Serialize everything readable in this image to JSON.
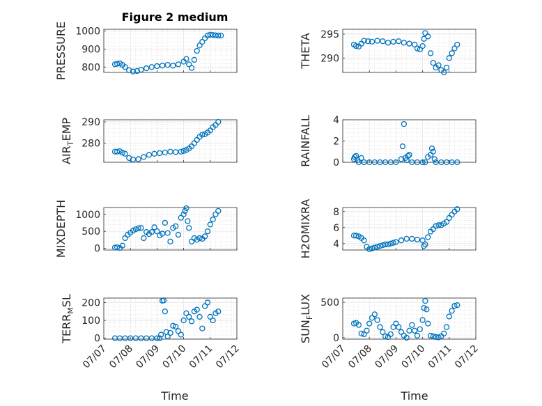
{
  "figure": {
    "title": "Figure 2 medium",
    "xlabel": "Time"
  },
  "marker_color": "#0072BD",
  "chart_data": [
    {
      "type": "scatter",
      "ylabel": "PRESSURE",
      "yticks": [
        800,
        900,
        1000
      ],
      "ylim": [
        770,
        1010
      ],
      "xlim": [
        0,
        5
      ],
      "xticks": [
        "07/07",
        "07/08",
        "07/09",
        "07/10",
        "07/11",
        "07/12"
      ],
      "series": [
        {
          "name": "",
          "x": [
            0.42,
            0.5,
            0.6,
            0.7,
            0.8,
            0.95,
            1.1,
            1.25,
            1.4,
            1.6,
            1.8,
            2.0,
            2.2,
            2.4,
            2.6,
            2.8,
            3.0,
            3.1,
            3.2,
            3.3,
            3.4,
            3.5,
            3.6,
            3.7,
            3.8,
            3.9,
            4.0,
            4.1,
            4.2,
            4.3,
            4.4
          ],
          "y": [
            815,
            818,
            820,
            812,
            800,
            782,
            775,
            778,
            785,
            793,
            800,
            805,
            808,
            812,
            808,
            815,
            830,
            845,
            815,
            795,
            840,
            890,
            920,
            940,
            960,
            975,
            980,
            978,
            976,
            975,
            975
          ]
        }
      ]
    },
    {
      "type": "scatter",
      "ylabel": "THETA",
      "yticks": [
        290,
        295
      ],
      "ylim": [
        287,
        296
      ],
      "xlim": [
        0,
        5
      ],
      "xticks": [
        "07/07",
        "07/08",
        "07/09",
        "07/10",
        "07/11",
        "07/12"
      ],
      "series": [
        {
          "name": "",
          "x": [
            0.42,
            0.5,
            0.6,
            0.7,
            0.8,
            0.95,
            1.1,
            1.3,
            1.5,
            1.7,
            1.9,
            2.1,
            2.3,
            2.5,
            2.7,
            2.8,
            2.9,
            3.0,
            3.05,
            3.1,
            3.2,
            3.3,
            3.4,
            3.5,
            3.6,
            3.7,
            3.8,
            3.9,
            4.0,
            4.1,
            4.2,
            4.3
          ],
          "y": [
            292.8,
            292.5,
            292.4,
            293,
            293.6,
            293.5,
            293.4,
            293.6,
            293.5,
            293.2,
            293.4,
            293.5,
            293.2,
            293,
            292.8,
            292,
            291.8,
            292.5,
            294,
            295.2,
            294.5,
            291,
            289,
            288,
            288.5,
            287.5,
            287,
            288,
            290,
            291,
            292,
            292.8
          ]
        }
      ]
    },
    {
      "type": "scatter",
      "ylabel": "AIR_TEMP",
      "yticks": [
        280,
        290
      ],
      "ylim": [
        271,
        291
      ],
      "xlim": [
        0,
        5
      ],
      "xticks": [
        "07/07",
        "07/08",
        "07/09",
        "07/10",
        "07/11",
        "07/12"
      ],
      "series": [
        {
          "name": "",
          "x": [
            0.42,
            0.5,
            0.6,
            0.7,
            0.8,
            0.95,
            1.1,
            1.3,
            1.5,
            1.7,
            1.9,
            2.1,
            2.3,
            2.5,
            2.7,
            2.9,
            3.0,
            3.1,
            3.2,
            3.3,
            3.4,
            3.5,
            3.6,
            3.7,
            3.8,
            3.9,
            4.0,
            4.1,
            4.2,
            4.3
          ],
          "y": [
            276,
            276,
            276.2,
            275.5,
            275,
            273,
            272.3,
            272.5,
            273.5,
            274.5,
            275,
            275.3,
            275.6,
            276,
            275.8,
            276,
            276.3,
            276.8,
            277.5,
            278.5,
            280,
            281.5,
            283,
            284,
            284.2,
            285,
            286,
            287.5,
            288.5,
            290
          ]
        }
      ]
    },
    {
      "type": "scatter",
      "ylabel": "RAINFALL",
      "yticks": [
        0,
        2,
        4
      ],
      "ylim": [
        0,
        4
      ],
      "xlim": [
        0,
        5
      ],
      "xticks": [
        "07/07",
        "07/08",
        "07/09",
        "07/10",
        "07/11",
        "07/12"
      ],
      "series": [
        {
          "name": "",
          "x": [
            0.42,
            0.45,
            0.5,
            0.55,
            0.6,
            0.7,
            0.8,
            1.0,
            1.2,
            1.4,
            1.6,
            1.8,
            2.0,
            2.2,
            2.25,
            2.3,
            2.35,
            2.4,
            2.45,
            2.5,
            2.6,
            2.8,
            3.0,
            3.1,
            3.2,
            3.3,
            3.35,
            3.4,
            3.45,
            3.5,
            3.7,
            3.9,
            4.1,
            4.3
          ],
          "y": [
            0.3,
            0.5,
            0.6,
            0.2,
            0,
            0.4,
            0,
            0,
            0,
            0,
            0,
            0,
            0,
            0.3,
            1.5,
            3.6,
            0.4,
            0.2,
            0.6,
            0.7,
            0,
            0,
            0,
            0,
            0.5,
            0.7,
            1.3,
            1.0,
            0.3,
            0,
            0,
            0,
            0,
            0
          ]
        }
      ]
    },
    {
      "type": "scatter",
      "ylabel": "MIXDEPTH",
      "yticks": [
        0,
        500,
        1000
      ],
      "ylim": [
        -50,
        1200
      ],
      "xlim": [
        0,
        5
      ],
      "xticks": [
        "07/07",
        "07/08",
        "07/09",
        "07/10",
        "07/11",
        "07/12"
      ],
      "series": [
        {
          "name": "",
          "x": [
            0.42,
            0.5,
            0.6,
            0.7,
            0.8,
            0.9,
            1.0,
            1.1,
            1.2,
            1.3,
            1.4,
            1.5,
            1.6,
            1.7,
            1.8,
            1.9,
            2.0,
            2.1,
            2.2,
            2.3,
            2.4,
            2.5,
            2.6,
            2.7,
            2.8,
            2.9,
            3.0,
            3.05,
            3.1,
            3.15,
            3.2,
            3.3,
            3.4,
            3.5,
            3.6,
            3.7,
            3.8,
            3.9,
            4.0,
            4.1,
            4.2,
            4.3
          ],
          "y": [
            20,
            30,
            10,
            80,
            300,
            400,
            460,
            520,
            560,
            590,
            600,
            300,
            480,
            420,
            480,
            620,
            500,
            380,
            430,
            750,
            450,
            200,
            600,
            650,
            400,
            900,
            1000,
            1100,
            1180,
            800,
            600,
            200,
            300,
            250,
            300,
            280,
            350,
            500,
            700,
            850,
            1000,
            1100
          ]
        }
      ]
    },
    {
      "type": "scatter",
      "ylabel": "H2OMIXRA",
      "yticks": [
        4,
        6,
        8
      ],
      "ylim": [
        3.2,
        8.5
      ],
      "xlim": [
        0,
        5
      ],
      "xticks": [
        "07/07",
        "07/08",
        "07/09",
        "07/10",
        "07/11",
        "07/12"
      ],
      "series": [
        {
          "name": "",
          "x": [
            0.42,
            0.5,
            0.6,
            0.7,
            0.8,
            0.9,
            1.0,
            1.1,
            1.2,
            1.3,
            1.4,
            1.5,
            1.6,
            1.7,
            1.8,
            1.9,
            2.0,
            2.2,
            2.4,
            2.6,
            2.8,
            3.0,
            3.05,
            3.1,
            3.2,
            3.3,
            3.4,
            3.5,
            3.6,
            3.7,
            3.8,
            3.9,
            4.0,
            4.1,
            4.2,
            4.3
          ],
          "y": [
            5,
            5,
            4.9,
            4.7,
            4.4,
            3.6,
            3.3,
            3.4,
            3.5,
            3.6,
            3.7,
            3.8,
            3.9,
            3.9,
            4.0,
            4.1,
            4.2,
            4.4,
            4.6,
            4.6,
            4.5,
            4.4,
            3.7,
            3.9,
            4.8,
            5.5,
            5.8,
            6.2,
            6.3,
            6.3,
            6.5,
            6.7,
            7.2,
            7.6,
            8.0,
            8.3
          ]
        }
      ]
    },
    {
      "type": "scatter",
      "ylabel": "TERR_MSL",
      "yticks": [
        0,
        100,
        200
      ],
      "ylim": [
        -5,
        225
      ],
      "xlim": [
        0,
        5
      ],
      "xticks": [
        "07/07",
        "07/08",
        "07/09",
        "07/10",
        "07/11",
        "07/12"
      ],
      "series": [
        {
          "name": "",
          "x": [
            0.42,
            0.6,
            0.8,
            1.0,
            1.2,
            1.4,
            1.6,
            1.8,
            2.0,
            2.1,
            2.15,
            2.2,
            2.25,
            2.3,
            2.35,
            2.4,
            2.5,
            2.6,
            2.7,
            2.8,
            2.9,
            3.0,
            3.1,
            3.2,
            3.3,
            3.4,
            3.5,
            3.6,
            3.7,
            3.8,
            3.9,
            4.0,
            4.1,
            4.2,
            4.3
          ],
          "y": [
            0,
            0,
            0,
            0,
            0,
            0,
            0,
            0,
            0,
            0,
            20,
            210,
            212,
            150,
            35,
            10,
            30,
            70,
            65,
            40,
            20,
            100,
            140,
            120,
            95,
            150,
            160,
            120,
            55,
            180,
            200,
            120,
            100,
            140,
            150
          ]
        }
      ]
    },
    {
      "type": "scatter",
      "ylabel": "SUN_FLUX",
      "yticks": [
        0,
        500
      ],
      "ylim": [
        -20,
        560
      ],
      "xlim": [
        0,
        5
      ],
      "xticks": [
        "07/07",
        "07/08",
        "07/09",
        "07/10",
        "07/11",
        "07/12"
      ],
      "series": [
        {
          "name": "",
          "x": [
            0.42,
            0.5,
            0.6,
            0.7,
            0.8,
            0.9,
            1.0,
            1.1,
            1.2,
            1.3,
            1.4,
            1.5,
            1.6,
            1.7,
            1.8,
            1.9,
            2.0,
            2.1,
            2.2,
            2.3,
            2.4,
            2.5,
            2.6,
            2.7,
            2.8,
            2.9,
            3.0,
            3.05,
            3.1,
            3.15,
            3.2,
            3.3,
            3.4,
            3.5,
            3.6,
            3.7,
            3.8,
            3.9,
            4.0,
            4.1,
            4.2,
            4.3
          ],
          "y": [
            200,
            210,
            180,
            60,
            50,
            100,
            200,
            280,
            330,
            250,
            150,
            80,
            20,
            10,
            50,
            150,
            200,
            150,
            80,
            30,
            0,
            100,
            180,
            100,
            30,
            120,
            250,
            420,
            520,
            400,
            200,
            30,
            20,
            10,
            5,
            20,
            60,
            150,
            300,
            380,
            450,
            460
          ]
        }
      ]
    }
  ]
}
